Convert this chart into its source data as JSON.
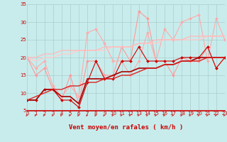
{
  "xlabel": "Vent moyen/en rafales ( km/h )",
  "xlim": [
    0,
    23
  ],
  "ylim": [
    5,
    35
  ],
  "yticks": [
    5,
    10,
    15,
    20,
    25,
    30,
    35
  ],
  "xticks": [
    0,
    1,
    2,
    3,
    4,
    5,
    6,
    7,
    8,
    9,
    10,
    11,
    12,
    13,
    14,
    15,
    16,
    17,
    18,
    19,
    20,
    21,
    22,
    23
  ],
  "bg_color": "#c8ecec",
  "grid_color": "#aacccc",
  "arrow_color": "#cc4444",
  "series": [
    {
      "x": [
        0,
        1,
        2,
        3,
        4,
        5,
        6,
        7,
        8,
        9,
        10,
        11,
        12,
        13,
        14,
        15,
        16,
        17,
        18,
        19,
        20,
        21,
        22,
        23
      ],
      "y": [
        20,
        15,
        17,
        11,
        8,
        15,
        7,
        19,
        19,
        15,
        15,
        23,
        19,
        33,
        31,
        19,
        19,
        15,
        20,
        19,
        19,
        23,
        17,
        20
      ],
      "color": "#ff9999",
      "lw": 0.8,
      "marker": "D",
      "ms": 2.0
    },
    {
      "x": [
        0,
        1,
        2,
        3,
        4,
        5,
        6,
        7,
        8,
        9,
        10,
        11,
        12,
        13,
        14,
        15,
        16,
        17,
        18,
        19,
        20,
        21,
        22,
        23
      ],
      "y": [
        20,
        17,
        19,
        12,
        9,
        12,
        9,
        27,
        28,
        24,
        19,
        19,
        15,
        19,
        27,
        19,
        28,
        25,
        30,
        31,
        32,
        19,
        31,
        25
      ],
      "color": "#ffaaaa",
      "lw": 0.8,
      "marker": "D",
      "ms": 2.0
    },
    {
      "x": [
        0,
        1,
        2,
        3,
        4,
        5,
        6,
        7,
        8,
        9,
        10,
        11,
        12,
        13,
        14,
        15,
        16,
        17,
        18,
        19,
        20,
        21,
        22,
        23
      ],
      "y": [
        8,
        8,
        11,
        11,
        8,
        8,
        6,
        13,
        19,
        14,
        14,
        19,
        19,
        23,
        19,
        19,
        19,
        19,
        20,
        20,
        20,
        23,
        17,
        20
      ],
      "color": "#cc0000",
      "lw": 0.8,
      "marker": "D",
      "ms": 2.0
    },
    {
      "x": [
        0,
        1,
        2,
        3,
        4,
        5,
        6,
        7,
        8,
        9,
        10,
        11,
        12,
        13,
        14,
        15,
        16,
        17,
        18,
        19,
        20,
        21,
        22,
        23
      ],
      "y": [
        8,
        8,
        11,
        11,
        9,
        9,
        7,
        14,
        14,
        14,
        15,
        16,
        16,
        17,
        17,
        17,
        18,
        18,
        19,
        19,
        20,
        20,
        20,
        20
      ],
      "color": "#aa0000",
      "lw": 1.2,
      "marker": null,
      "ms": 0
    },
    {
      "x": [
        0,
        1,
        2,
        3,
        4,
        5,
        6,
        7,
        8,
        9,
        10,
        11,
        12,
        13,
        14,
        15,
        16,
        17,
        18,
        19,
        20,
        21,
        22,
        23
      ],
      "y": [
        8,
        9,
        10,
        11,
        11,
        12,
        12,
        13,
        13,
        14,
        14,
        15,
        15,
        16,
        17,
        17,
        18,
        18,
        19,
        19,
        19,
        20,
        20,
        20
      ],
      "color": "#dd2222",
      "lw": 1.0,
      "marker": null,
      "ms": 0
    },
    {
      "x": [
        0,
        1,
        2,
        3,
        4,
        5,
        6,
        7,
        8,
        9,
        10,
        11,
        12,
        13,
        14,
        15,
        16,
        17,
        18,
        19,
        20,
        21,
        22,
        23
      ],
      "y": [
        20,
        19,
        20,
        20,
        21,
        21,
        22,
        22,
        22,
        22,
        23,
        23,
        23,
        24,
        24,
        24,
        25,
        25,
        25,
        25,
        25,
        26,
        26,
        26
      ],
      "color": "#ffcccc",
      "lw": 1.0,
      "marker": null,
      "ms": 0
    },
    {
      "x": [
        0,
        1,
        2,
        3,
        4,
        5,
        6,
        7,
        8,
        9,
        10,
        11,
        12,
        13,
        14,
        15,
        16,
        17,
        18,
        19,
        20,
        21,
        22,
        23
      ],
      "y": [
        20,
        20,
        21,
        21,
        22,
        22,
        22,
        22,
        22,
        23,
        23,
        23,
        23,
        24,
        24,
        25,
        25,
        25,
        25,
        26,
        26,
        26,
        26,
        26
      ],
      "color": "#ffbbbb",
      "lw": 1.0,
      "marker": null,
      "ms": 0
    }
  ]
}
